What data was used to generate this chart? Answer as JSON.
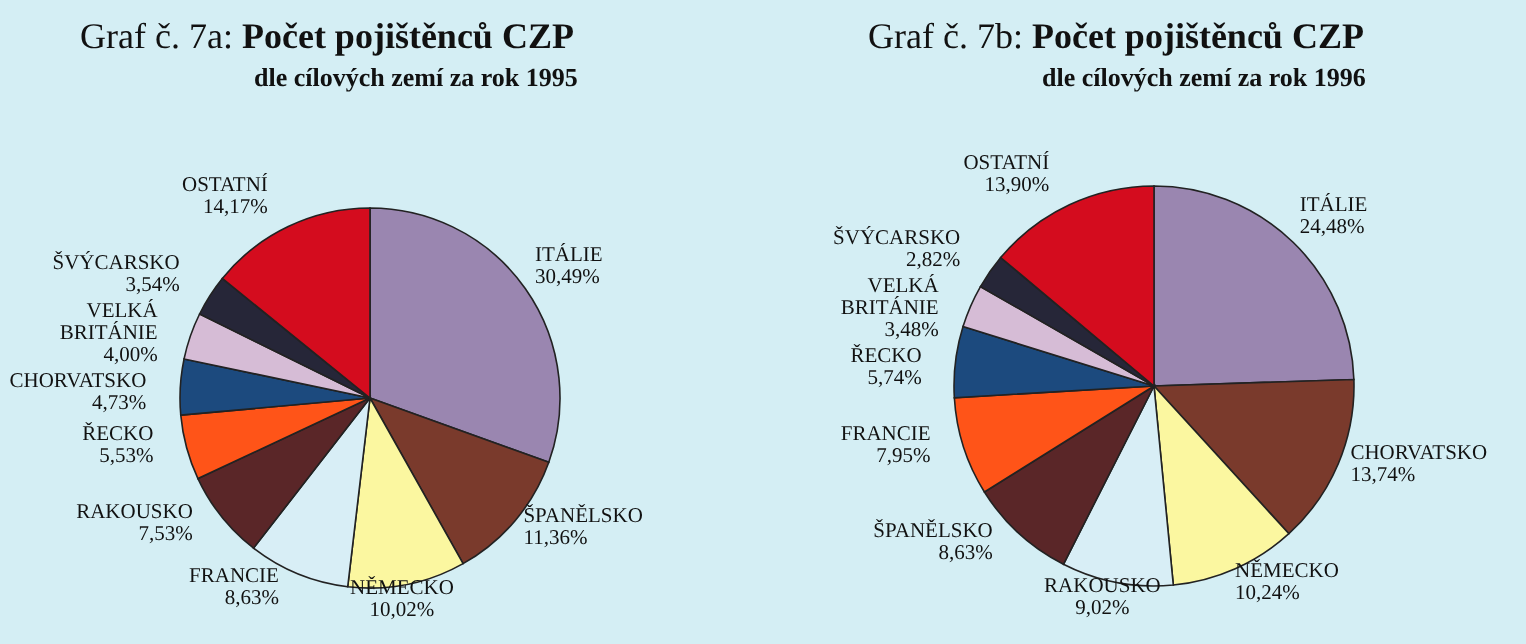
{
  "chart_data": [
    {
      "type": "pie",
      "title": "Graf č. 7a: Počet pojištěnců CZP",
      "subtitle": "dle cílových zemí za rok 1995",
      "categories": [
        "ITÁLIE",
        "ŠPANĚLSKO",
        "NĚMECKO",
        "FRANCIE",
        "RAKOUSKO",
        "ŘECKO",
        "CHORVATSKO",
        "VELKÁ BRITÁNIE",
        "ŠVÝCARSKO",
        "OSTATNÍ"
      ],
      "values": [
        30.49,
        11.36,
        10.02,
        8.63,
        7.53,
        5.53,
        4.73,
        4.0,
        3.54,
        14.17
      ],
      "value_labels": [
        "30,49%",
        "11,36%",
        "10,02%",
        "8,63%",
        "7,53%",
        "5,53%",
        "4,73%",
        "4,00%",
        "3,54%",
        "14,17%"
      ],
      "colors": [
        "#9a86b0",
        "#7a3a2c",
        "#fbf7a0",
        "#d8eef6",
        "#5a2628",
        "#ff5418",
        "#1c4a7e",
        "#d6bcd6",
        "#262638",
        "#d40c1e"
      ]
    },
    {
      "type": "pie",
      "title": "Graf č. 7b: Počet pojištěnců CZP",
      "subtitle": "dle cílových zemí za rok 1996",
      "categories": [
        "ITÁLIE",
        "CHORVATSKO",
        "NĚMECKO",
        "RAKOUSKO",
        "ŠPANĚLSKO",
        "FRANCIE",
        "ŘECKO",
        "VELKÁ BRITÁNIE",
        "ŠVÝCARSKO",
        "OSTATNÍ"
      ],
      "values": [
        24.48,
        13.74,
        10.24,
        9.02,
        8.63,
        7.95,
        5.74,
        3.48,
        2.82,
        13.9
      ],
      "value_labels": [
        "24,48%",
        "13,74%",
        "10,24%",
        "9,02%",
        "8,63%",
        "7,95%",
        "5,74%",
        "3,48%",
        "2,82%",
        "13,90%"
      ],
      "colors": [
        "#9a86b0",
        "#7a3a2c",
        "#fbf7a0",
        "#d8eef6",
        "#5a2628",
        "#ff5418",
        "#1c4a7e",
        "#d6bcd6",
        "#262638",
        "#d40c1e"
      ]
    }
  ]
}
